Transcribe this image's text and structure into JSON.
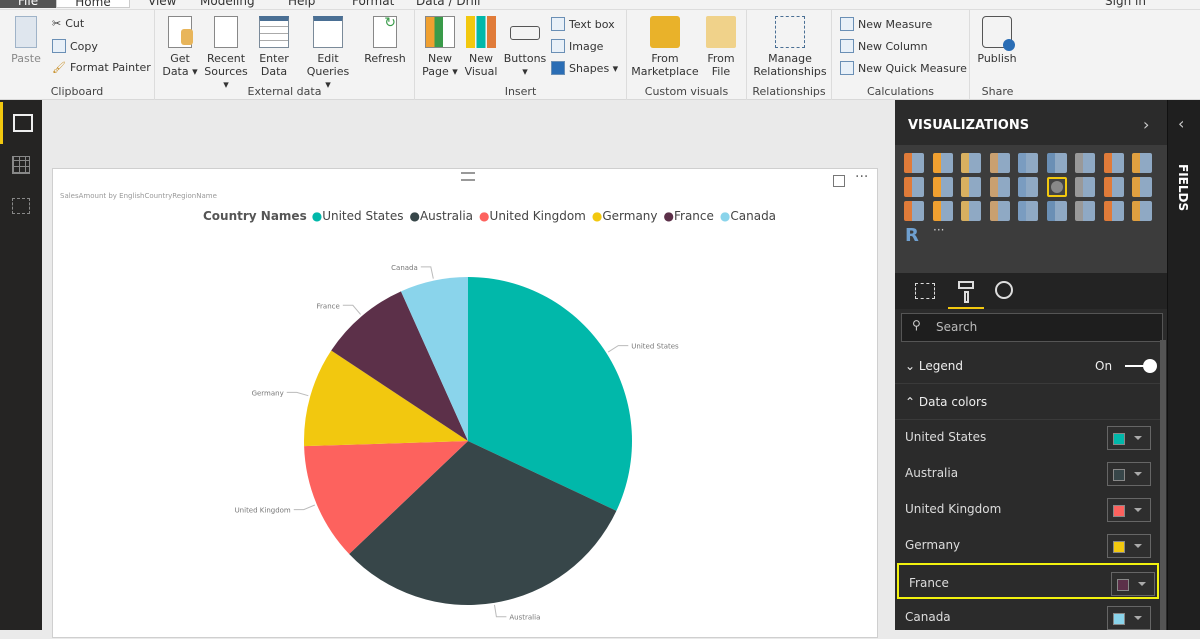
{
  "tabs": [
    "File",
    "Home",
    "View",
    "Modeling",
    "Help",
    "Format",
    "Data / Drill"
  ],
  "sign_in": "Sign in",
  "ribbon": {
    "clipboard": {
      "label": "Clipboard",
      "paste": "Paste",
      "cut": "Cut",
      "copy": "Copy",
      "format_painter": "Format Painter"
    },
    "external": {
      "label": "External data",
      "get_data": "Get Data ▾",
      "recent_sources": "Recent Sources ▾",
      "enter_data": "Enter Data",
      "edit_queries": "Edit Queries ▾",
      "refresh": "Refresh"
    },
    "insert": {
      "label": "Insert",
      "new_page": "New Page ▾",
      "new_visual": "New Visual",
      "buttons": "Buttons ▾",
      "text_box": "Text box",
      "image": "Image",
      "shapes": "Shapes ▾"
    },
    "custom": {
      "label": "Custom visuals",
      "marketplace": "From Marketplace",
      "file": "From File"
    },
    "relationships": {
      "label": "Relationships",
      "manage": "Manage Relationships"
    },
    "calculations": {
      "label": "Calculations",
      "new_measure": "New Measure",
      "new_column": "New Column",
      "new_quick_measure": "New Quick Measure"
    },
    "share": {
      "label": "Share",
      "publish": "Publish"
    }
  },
  "visual": {
    "title": "SalesAmount by EnglishCountryRegionName",
    "legend_title": "Country Names"
  },
  "chart_data": {
    "type": "pie",
    "title": "SalesAmount by EnglishCountryRegionName",
    "legend_title": "Country Names",
    "legend_position": "top-center",
    "categories": [
      "United States",
      "Australia",
      "United Kingdom",
      "Germany",
      "France",
      "Canada"
    ],
    "values": [
      32.0,
      30.9,
      11.6,
      9.8,
      9.0,
      6.7
    ],
    "value_unit": "approx. percent share",
    "colors": [
      "#01B8AA",
      "#374649",
      "#FD625E",
      "#F2C80F",
      "#5C3049",
      "#8AD4EB"
    ]
  },
  "panel": {
    "title": "VISUALIZATIONS",
    "fields": "FIELDS",
    "search_placeholder": "Search",
    "legend": "Legend",
    "legend_state": "On",
    "data_colors": "Data colors",
    "highlighted": "France"
  }
}
